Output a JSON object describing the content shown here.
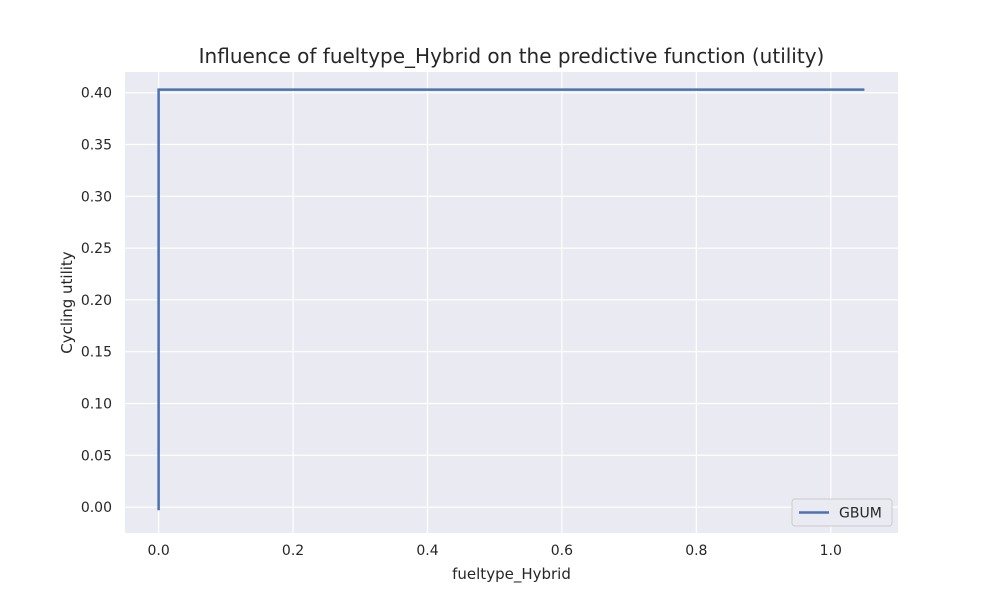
{
  "chart_data": {
    "type": "line",
    "title": "Influence of fueltype_Hybrid on the predictive function (utility)",
    "xlabel": "fueltype_Hybrid",
    "ylabel": "Cycling utility",
    "xlim": [
      -0.05,
      1.1
    ],
    "ylim": [
      -0.025,
      0.42
    ],
    "x_ticks": [
      0.0,
      0.2,
      0.4,
      0.6,
      0.8,
      1.0
    ],
    "x_tick_labels": [
      "0.0",
      "0.2",
      "0.4",
      "0.6",
      "0.8",
      "1.0"
    ],
    "y_ticks": [
      0.0,
      0.05,
      0.1,
      0.15,
      0.2,
      0.25,
      0.3,
      0.35,
      0.4
    ],
    "y_tick_labels": [
      "0.00",
      "0.05",
      "0.10",
      "0.15",
      "0.20",
      "0.25",
      "0.30",
      "0.35",
      "0.40"
    ],
    "grid": true,
    "legend_position": "lower-right",
    "background": "#eaeaf2",
    "series": [
      {
        "name": "GBUM",
        "color": "#4c72b0",
        "x": [
          0.0,
          0.0,
          1.05
        ],
        "y": [
          -0.003,
          0.403,
          0.403
        ]
      }
    ]
  }
}
